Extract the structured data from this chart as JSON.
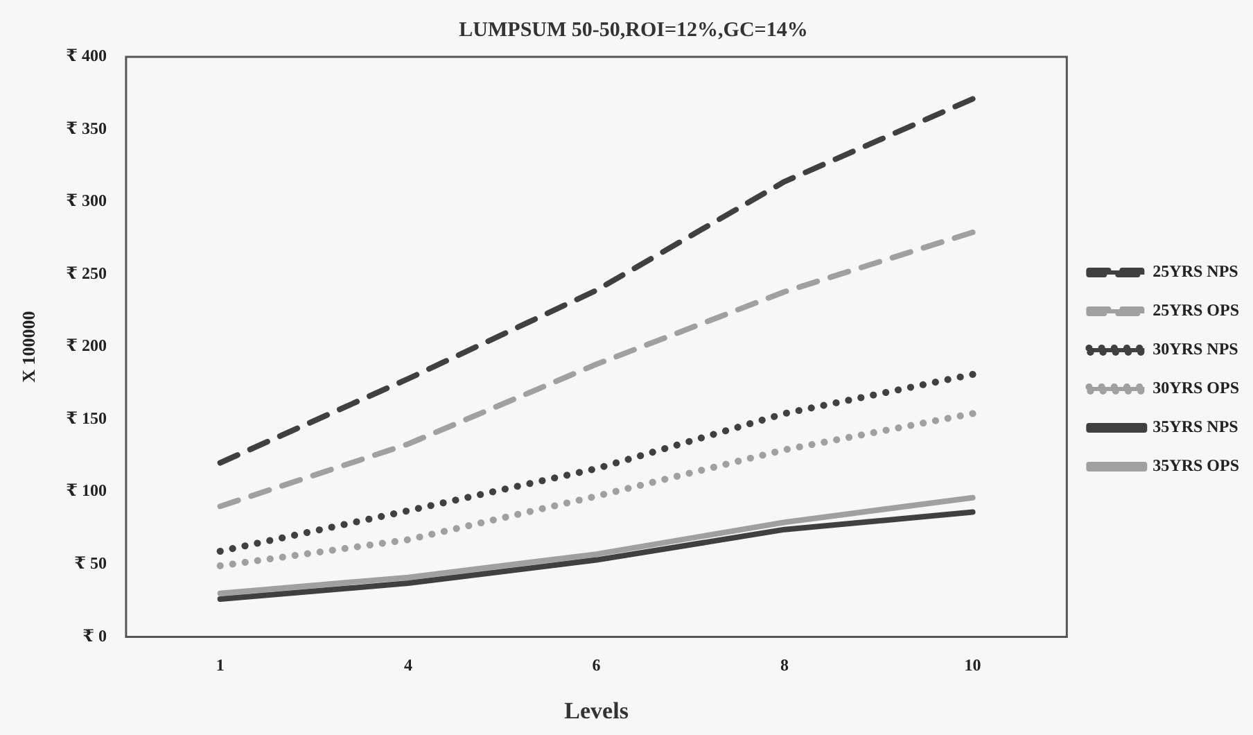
{
  "chart_data": {
    "type": "line",
    "title": "LUMPSUM 50-50,ROI=12%,GC=14%",
    "xlabel": "Levels",
    "ylabel": "X 100000",
    "categories": [
      "1",
      "4",
      "6",
      "8",
      "10"
    ],
    "series": [
      {
        "name": "25YRS NPS",
        "color": "#404040",
        "line_style": "dashed",
        "values": [
          120,
          178,
          239,
          314,
          371
        ]
      },
      {
        "name": "25YRS OPS",
        "color": "#a0a0a0",
        "line_style": "dashed",
        "values": [
          90,
          133,
          188,
          238,
          279
        ]
      },
      {
        "name": "30YRS NPS",
        "color": "#404040",
        "line_style": "dotted",
        "values": [
          59,
          87,
          116,
          154,
          181
        ]
      },
      {
        "name": "30YRS OPS",
        "color": "#a0a0a0",
        "line_style": "dotted",
        "values": [
          49,
          67,
          97,
          129,
          154
        ]
      },
      {
        "name": "35YRS NPS",
        "color": "#404040",
        "line_style": "solid",
        "values": [
          26,
          37,
          53,
          74,
          86
        ]
      },
      {
        "name": "35YRS OPS",
        "color": "#a0a0a0",
        "line_style": "solid",
        "values": [
          30,
          41,
          57,
          79,
          96
        ]
      }
    ],
    "ylim": [
      0,
      400
    ],
    "yticks": [
      {
        "value": 0,
        "label": "₹ 0"
      },
      {
        "value": 50,
        "label": "₹ 50"
      },
      {
        "value": 100,
        "label": "₹ 100"
      },
      {
        "value": 150,
        "label": "₹ 150"
      },
      {
        "value": 200,
        "label": "₹ 200"
      },
      {
        "value": 250,
        "label": "₹ 250"
      },
      {
        "value": 300,
        "label": "₹ 300"
      },
      {
        "value": 350,
        "label": "₹ 350"
      },
      {
        "value": 400,
        "label": "₹ 400"
      }
    ],
    "grid": false,
    "legend": "right",
    "marker": "none"
  }
}
